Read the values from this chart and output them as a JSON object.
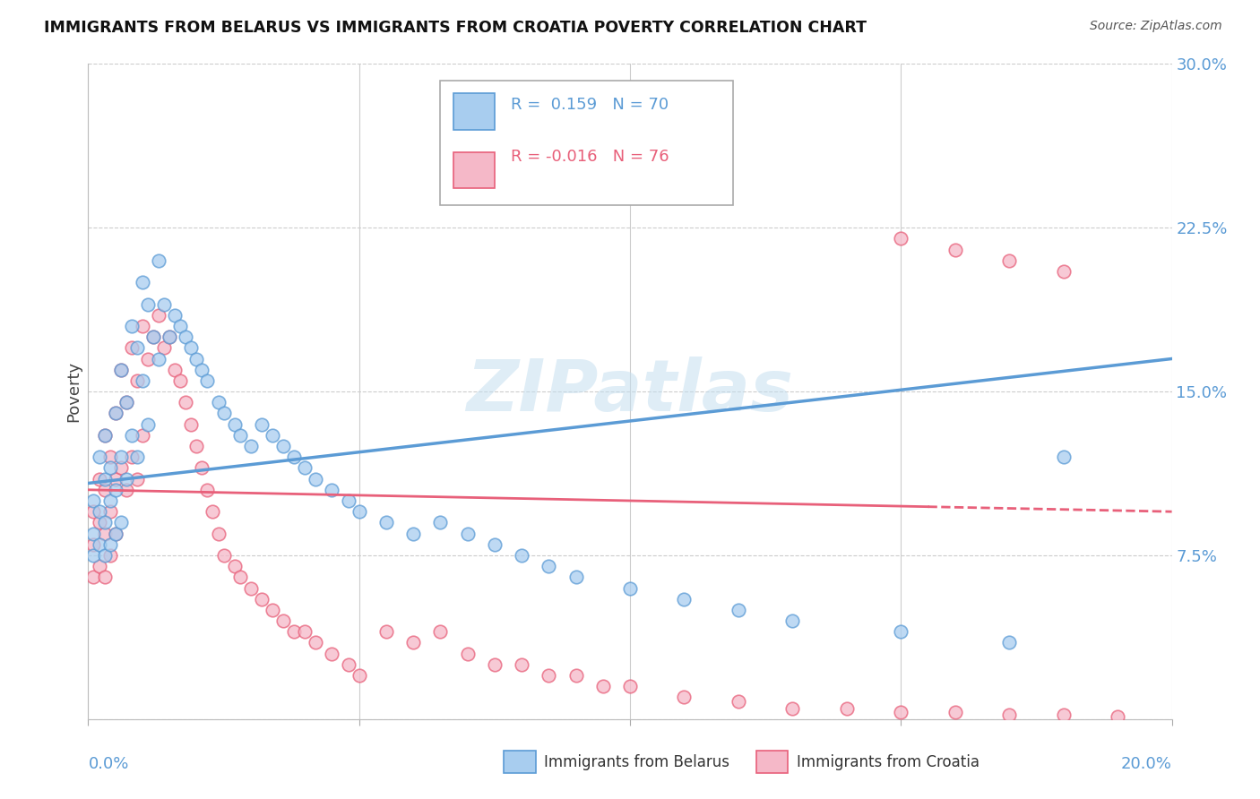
{
  "title": "IMMIGRANTS FROM BELARUS VS IMMIGRANTS FROM CROATIA POVERTY CORRELATION CHART",
  "source": "Source: ZipAtlas.com",
  "ylabel": "Poverty",
  "y_ticks": [
    0.0,
    0.075,
    0.15,
    0.225,
    0.3
  ],
  "y_tick_labels": [
    "",
    "7.5%",
    "15.0%",
    "22.5%",
    "30.0%"
  ],
  "x_range": [
    0.0,
    0.2
  ],
  "y_range": [
    0.0,
    0.3
  ],
  "watermark": "ZIPatlas",
  "color_belarus": "#A8CDEF",
  "color_croatia": "#F5B8C8",
  "color_line_belarus": "#5B9BD5",
  "color_line_croatia": "#E8607A",
  "belarus_R": 0.159,
  "croatia_R": -0.016,
  "belarus_N": 70,
  "croatia_N": 76,
  "belarus_scatter_x": [
    0.001,
    0.001,
    0.001,
    0.002,
    0.002,
    0.002,
    0.003,
    0.003,
    0.003,
    0.003,
    0.004,
    0.004,
    0.004,
    0.005,
    0.005,
    0.005,
    0.006,
    0.006,
    0.006,
    0.007,
    0.007,
    0.008,
    0.008,
    0.009,
    0.009,
    0.01,
    0.01,
    0.011,
    0.011,
    0.012,
    0.013,
    0.013,
    0.014,
    0.015,
    0.016,
    0.017,
    0.018,
    0.019,
    0.02,
    0.021,
    0.022,
    0.024,
    0.025,
    0.027,
    0.028,
    0.03,
    0.032,
    0.034,
    0.036,
    0.038,
    0.04,
    0.042,
    0.045,
    0.048,
    0.05,
    0.055,
    0.06,
    0.065,
    0.07,
    0.075,
    0.08,
    0.085,
    0.09,
    0.1,
    0.11,
    0.12,
    0.13,
    0.15,
    0.17,
    0.18
  ],
  "belarus_scatter_y": [
    0.1,
    0.085,
    0.075,
    0.12,
    0.095,
    0.08,
    0.13,
    0.11,
    0.09,
    0.075,
    0.115,
    0.1,
    0.08,
    0.14,
    0.105,
    0.085,
    0.16,
    0.12,
    0.09,
    0.145,
    0.11,
    0.18,
    0.13,
    0.17,
    0.12,
    0.2,
    0.155,
    0.19,
    0.135,
    0.175,
    0.21,
    0.165,
    0.19,
    0.175,
    0.185,
    0.18,
    0.175,
    0.17,
    0.165,
    0.16,
    0.155,
    0.145,
    0.14,
    0.135,
    0.13,
    0.125,
    0.135,
    0.13,
    0.125,
    0.12,
    0.115,
    0.11,
    0.105,
    0.1,
    0.095,
    0.09,
    0.085,
    0.09,
    0.085,
    0.08,
    0.075,
    0.07,
    0.065,
    0.06,
    0.055,
    0.05,
    0.045,
    0.04,
    0.035,
    0.12
  ],
  "croatia_scatter_x": [
    0.001,
    0.001,
    0.001,
    0.002,
    0.002,
    0.002,
    0.003,
    0.003,
    0.003,
    0.003,
    0.004,
    0.004,
    0.004,
    0.005,
    0.005,
    0.005,
    0.006,
    0.006,
    0.007,
    0.007,
    0.008,
    0.008,
    0.009,
    0.009,
    0.01,
    0.01,
    0.011,
    0.012,
    0.013,
    0.014,
    0.015,
    0.016,
    0.017,
    0.018,
    0.019,
    0.02,
    0.021,
    0.022,
    0.023,
    0.024,
    0.025,
    0.027,
    0.028,
    0.03,
    0.032,
    0.034,
    0.036,
    0.038,
    0.04,
    0.042,
    0.045,
    0.048,
    0.05,
    0.055,
    0.06,
    0.065,
    0.07,
    0.075,
    0.08,
    0.085,
    0.09,
    0.095,
    0.1,
    0.11,
    0.12,
    0.13,
    0.14,
    0.15,
    0.16,
    0.17,
    0.18,
    0.19,
    0.15,
    0.16,
    0.17,
    0.18
  ],
  "croatia_scatter_y": [
    0.095,
    0.08,
    0.065,
    0.11,
    0.09,
    0.07,
    0.13,
    0.105,
    0.085,
    0.065,
    0.12,
    0.095,
    0.075,
    0.14,
    0.11,
    0.085,
    0.16,
    0.115,
    0.145,
    0.105,
    0.17,
    0.12,
    0.155,
    0.11,
    0.18,
    0.13,
    0.165,
    0.175,
    0.185,
    0.17,
    0.175,
    0.16,
    0.155,
    0.145,
    0.135,
    0.125,
    0.115,
    0.105,
    0.095,
    0.085,
    0.075,
    0.07,
    0.065,
    0.06,
    0.055,
    0.05,
    0.045,
    0.04,
    0.04,
    0.035,
    0.03,
    0.025,
    0.02,
    0.04,
    0.035,
    0.04,
    0.03,
    0.025,
    0.025,
    0.02,
    0.02,
    0.015,
    0.015,
    0.01,
    0.008,
    0.005,
    0.005,
    0.003,
    0.003,
    0.002,
    0.002,
    0.001,
    0.22,
    0.215,
    0.21,
    0.205
  ]
}
